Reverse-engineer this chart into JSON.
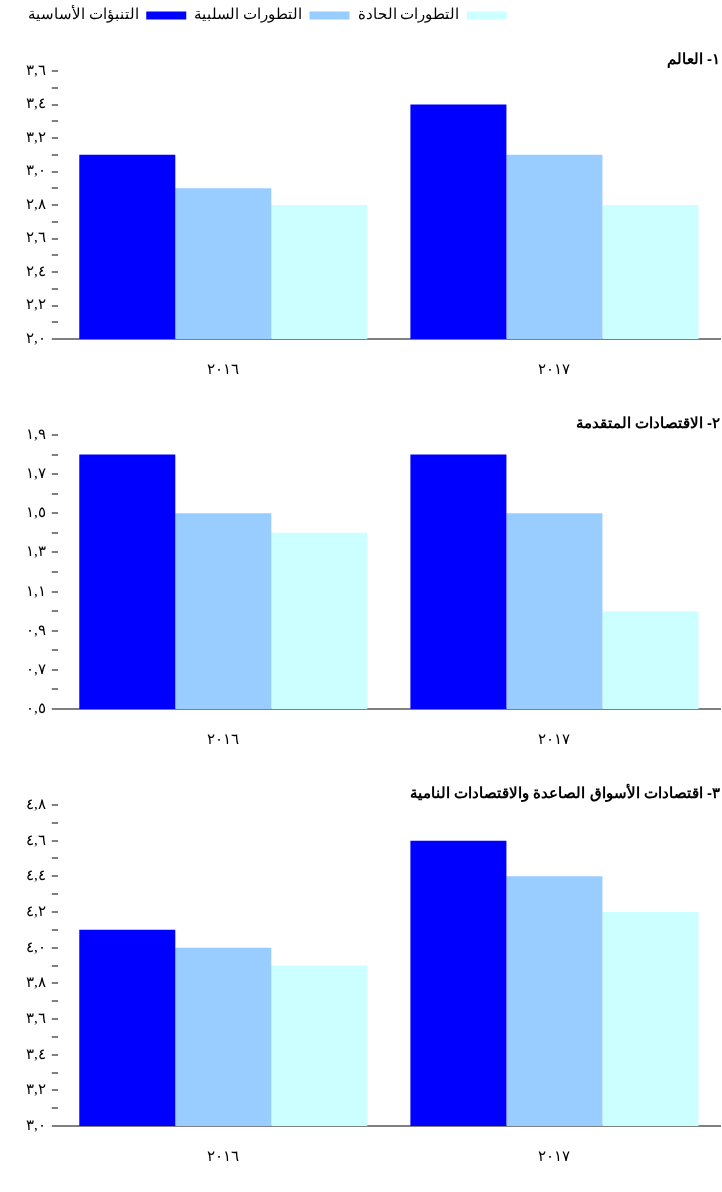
{
  "chart_data": [
    {
      "type": "bar",
      "title": "١- العالم",
      "categories": [
        "٢٠١٦",
        "٢٠١٧"
      ],
      "legend": "top left",
      "series": [
        {
          "name": "التنبؤات الأساسية",
          "color": "#0000ff",
          "values": [
            3.1,
            3.4
          ]
        },
        {
          "name": "التطورات السلبية",
          "color": "#99ccff",
          "values": [
            2.9,
            3.1
          ]
        },
        {
          "name": "التطورات الحادة",
          "color": "#ccffff",
          "values": [
            2.8,
            2.8
          ]
        }
      ],
      "ylim": [
        2.0,
        3.6
      ],
      "yticks": [
        {
          "value": 2.0,
          "label": "٢,٠"
        },
        {
          "value": 2.1,
          "label": null
        },
        {
          "value": 2.2,
          "label": "٢,٢"
        },
        {
          "value": 2.3,
          "label": null
        },
        {
          "value": 2.4,
          "label": "٢,٤"
        },
        {
          "value": 2.5,
          "label": null
        },
        {
          "value": 2.6,
          "label": "٢,٦"
        },
        {
          "value": 2.7,
          "label": null
        },
        {
          "value": 2.8,
          "label": "٢,٨"
        },
        {
          "value": 2.9,
          "label": null
        },
        {
          "value": 3.0,
          "label": "٣,٠"
        },
        {
          "value": 3.1,
          "label": null
        },
        {
          "value": 3.2,
          "label": "٣,٢"
        },
        {
          "value": 3.3,
          "label": null
        },
        {
          "value": 3.4,
          "label": "٣,٤"
        },
        {
          "value": 3.5,
          "label": null
        },
        {
          "value": 3.6,
          "label": "٣,٦"
        }
      ]
    },
    {
      "type": "bar",
      "title": "٢- الاقتصادات المتقدمة",
      "categories": [
        "٢٠١٦",
        "٢٠١٧"
      ],
      "series": [
        {
          "color": "#0000ff",
          "values": [
            1.8,
            1.8
          ]
        },
        {
          "color": "#99ccff",
          "values": [
            1.5,
            1.5
          ]
        },
        {
          "color": "#ccffff",
          "values": [
            1.4,
            1.0
          ]
        }
      ],
      "ylim": [
        0.5,
        1.9
      ],
      "yticks": [
        {
          "value": 0.5,
          "label": "٠,٥"
        },
        {
          "value": 0.6,
          "label": null
        },
        {
          "value": 0.7,
          "label": "٠,٧"
        },
        {
          "value": 0.8,
          "label": null
        },
        {
          "value": 0.9,
          "label": "٠,٩"
        },
        {
          "value": 1.0,
          "label": null
        },
        {
          "value": 1.1,
          "label": "١,١"
        },
        {
          "value": 1.2,
          "label": null
        },
        {
          "value": 1.3,
          "label": "١,٣"
        },
        {
          "value": 1.4,
          "label": null
        },
        {
          "value": 1.5,
          "label": "١,٥"
        },
        {
          "value": 1.6,
          "label": null
        },
        {
          "value": 1.7,
          "label": "١,٧"
        },
        {
          "value": 1.8,
          "label": null
        },
        {
          "value": 1.9,
          "label": "١,٩"
        }
      ]
    },
    {
      "type": "bar",
      "title": "٣- اقتصادات الأسواق الصاعدة والاقتصادات النامية",
      "categories": [
        "٢٠١٦",
        "٢٠١٧"
      ],
      "series": [
        {
          "color": "#0000ff",
          "values": [
            4.1,
            4.6
          ]
        },
        {
          "color": "#99ccff",
          "values": [
            4.0,
            4.4
          ]
        },
        {
          "color": "#ccffff",
          "values": [
            3.9,
            4.2
          ]
        }
      ],
      "ylim": [
        3.0,
        4.8
      ],
      "yticks": [
        {
          "value": 3.0,
          "label": "٣,٠"
        },
        {
          "value": 3.1,
          "label": null
        },
        {
          "value": 3.2,
          "label": "٣,٢"
        },
        {
          "value": 3.3,
          "label": null
        },
        {
          "value": 3.4,
          "label": "٣,٤"
        },
        {
          "value": 3.5,
          "label": null
        },
        {
          "value": 3.6,
          "label": "٣,٦"
        },
        {
          "value": 3.7,
          "label": null
        },
        {
          "value": 3.8,
          "label": "٣,٨"
        },
        {
          "value": 3.9,
          "label": null
        },
        {
          "value": 4.0,
          "label": "٤,٠"
        },
        {
          "value": 4.1,
          "label": null
        },
        {
          "value": 4.2,
          "label": "٤,٢"
        },
        {
          "value": 4.3,
          "label": null
        },
        {
          "value": 4.4,
          "label": "٤,٤"
        },
        {
          "value": 4.5,
          "label": null
        },
        {
          "value": 4.6,
          "label": "٤,٦"
        },
        {
          "value": 4.7,
          "label": null
        },
        {
          "value": 4.8,
          "label": "٤,٨"
        }
      ]
    }
  ]
}
